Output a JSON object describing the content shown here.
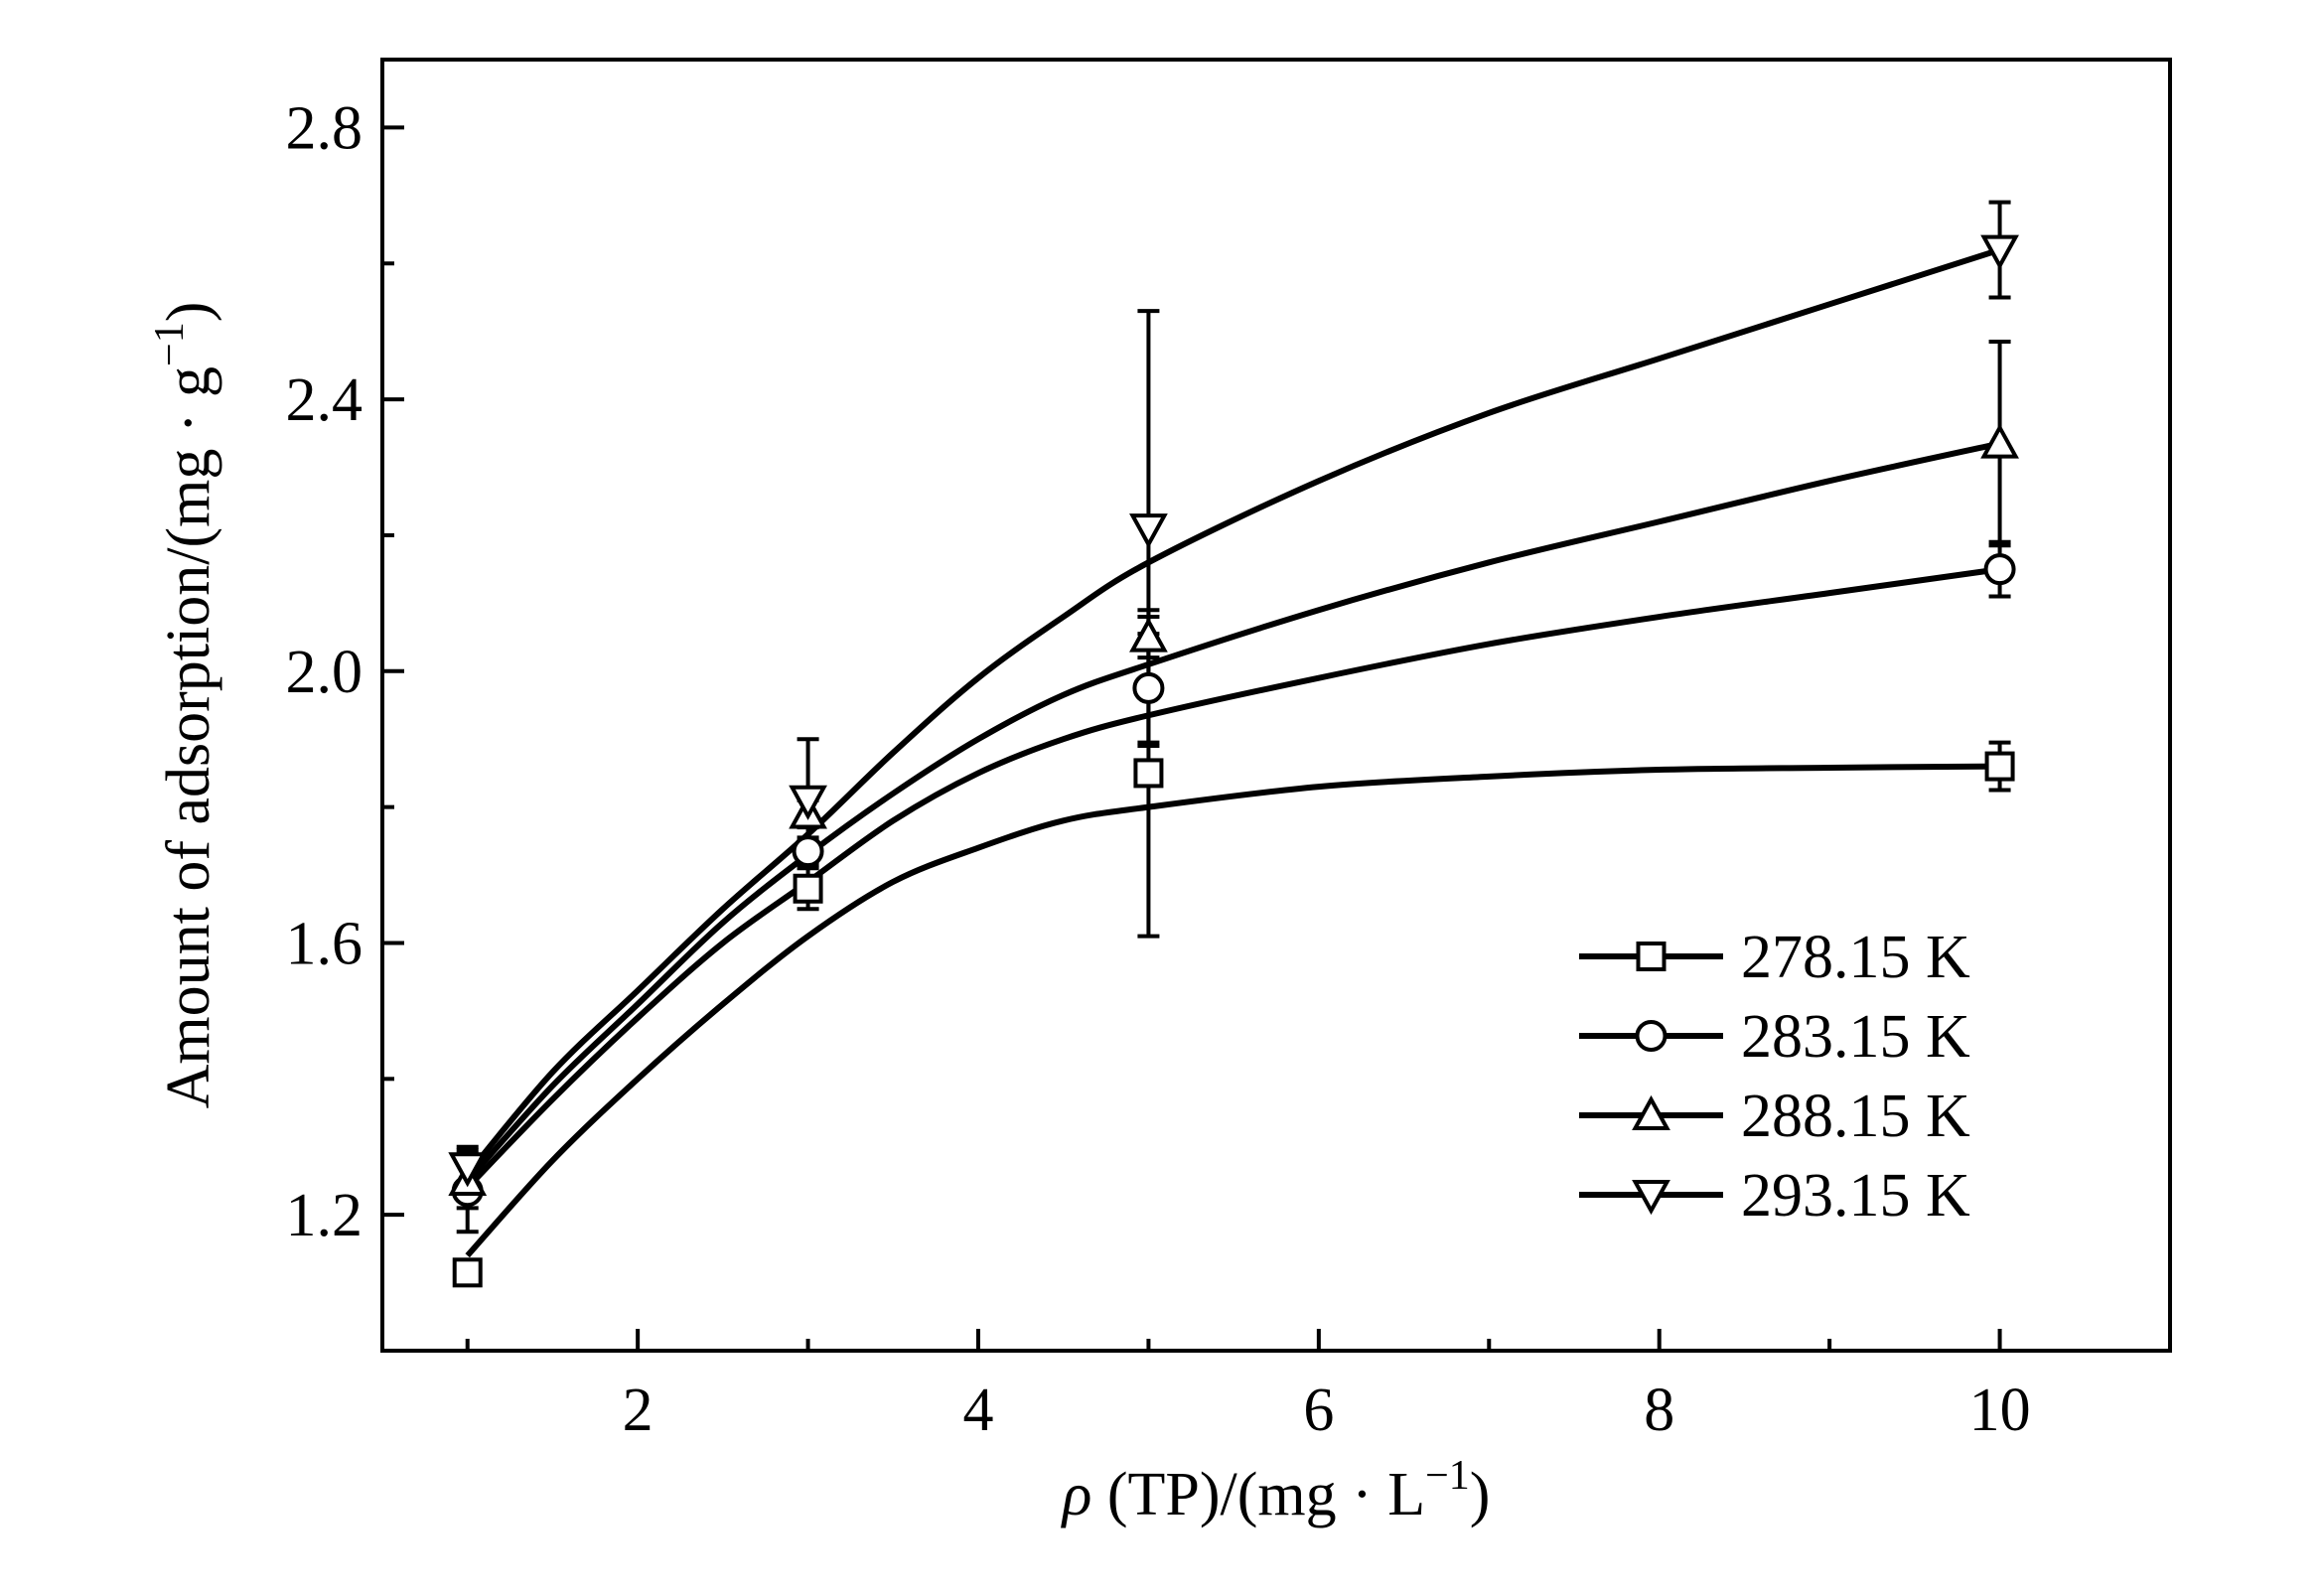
{
  "chart_data": {
    "type": "line",
    "xlabel_prefix": "ρ",
    "xlabel_main": " (TP)/(mg · L",
    "xlabel_sup": "−1",
    "xlabel_close": ")",
    "ylabel_main": "Amount of adsorption/(mg · g",
    "ylabel_sup": "−1",
    "ylabel_close": ")",
    "xlim": [
      0.5,
      11.0
    ],
    "ylim": [
      1.0,
      2.9
    ],
    "x_major_ticks": [
      2,
      4,
      6,
      8,
      10
    ],
    "x_minor_ticks": [
      1,
      3,
      5,
      7,
      9
    ],
    "y_major_ticks": [
      1.2,
      1.6,
      2.0,
      2.4,
      2.8
    ],
    "y_minor_ticks": [
      1.4,
      1.8,
      2.2,
      2.6
    ],
    "x_tick_labels": [
      "2",
      "4",
      "6",
      "8",
      "10"
    ],
    "y_tick_labels": [
      "1.2",
      "1.6",
      "2.0",
      "2.4",
      "2.8"
    ],
    "legend_position": "lower-right",
    "series": [
      {
        "name": "278.15 K",
        "marker": "square",
        "x": [
          1,
          3,
          5,
          10
        ],
        "y": [
          1.115,
          1.68,
          1.85,
          1.86
        ],
        "err": [
          0.0,
          0.03,
          0.24,
          0.035
        ],
        "fit_x": [
          1,
          1.5,
          2,
          2.5,
          3,
          3.5,
          4,
          4.5,
          5,
          6,
          7,
          8,
          9,
          10
        ],
        "fit_y": [
          1.14,
          1.28,
          1.4,
          1.51,
          1.61,
          1.69,
          1.74,
          1.78,
          1.8,
          1.83,
          1.845,
          1.855,
          1.858,
          1.86
        ]
      },
      {
        "name": "283.15 K",
        "marker": "circle",
        "x": [
          1,
          3,
          5,
          10
        ],
        "y": [
          1.235,
          1.735,
          1.975,
          2.15
        ],
        "err": [
          0.06,
          0.02,
          0.08,
          0.04
        ],
        "fit_x": [
          1,
          1.5,
          2,
          2.5,
          3,
          3.5,
          4,
          4.5,
          5,
          6,
          7,
          8,
          9,
          10
        ],
        "fit_y": [
          1.24,
          1.37,
          1.49,
          1.6,
          1.69,
          1.78,
          1.85,
          1.9,
          1.935,
          1.99,
          2.04,
          2.08,
          2.115,
          2.15
        ]
      },
      {
        "name": "288.15 K",
        "marker": "triangle-up",
        "x": [
          1,
          3,
          5,
          10
        ],
        "y": [
          1.25,
          1.79,
          2.05,
          2.335
        ],
        "err": [
          0.04,
          0.02,
          0.03,
          0.15
        ],
        "fit_x": [
          1,
          1.5,
          2,
          2.5,
          3,
          3.5,
          4,
          4.5,
          5,
          6,
          7,
          8,
          9,
          10
        ],
        "fit_y": [
          1.25,
          1.39,
          1.51,
          1.63,
          1.73,
          1.82,
          1.9,
          1.965,
          2.01,
          2.09,
          2.16,
          2.22,
          2.28,
          2.335
        ]
      },
      {
        "name": "293.15 K",
        "marker": "triangle-down",
        "x": [
          1,
          3,
          5,
          10
        ],
        "y": [
          1.27,
          1.81,
          2.21,
          2.62
        ],
        "err": [
          0.03,
          0.09,
          0.32,
          0.07
        ],
        "fit_x": [
          1,
          1.5,
          2,
          2.5,
          3,
          3.5,
          4,
          4.5,
          5,
          6,
          7,
          8,
          9,
          10
        ],
        "fit_y": [
          1.26,
          1.41,
          1.53,
          1.65,
          1.76,
          1.88,
          1.99,
          2.08,
          2.16,
          2.28,
          2.38,
          2.46,
          2.54,
          2.62
        ]
      }
    ]
  }
}
